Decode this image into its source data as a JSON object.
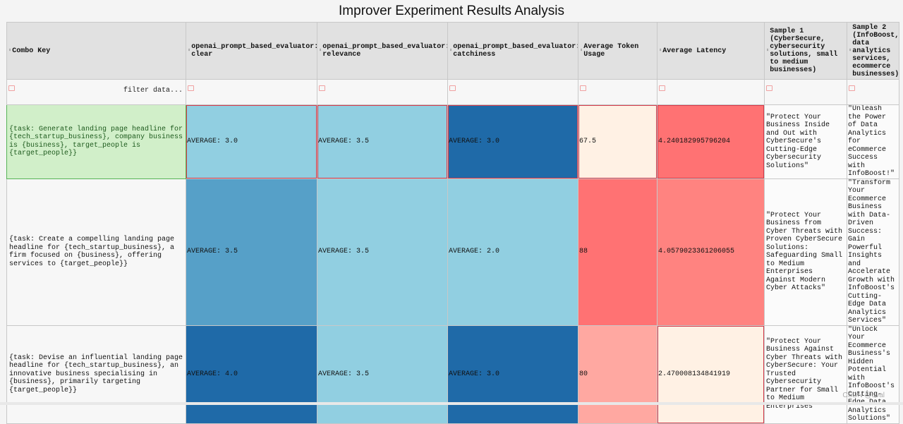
{
  "title": "Improver Experiment Results Analysis",
  "filter_placeholder": "filter data...",
  "columns": [
    "Combo Key",
    "openai_prompt_based_evaluator: clear",
    "openai_prompt_based_evaluator: relevance",
    "openai_prompt_based_evaluator: catchiness",
    "Average Token Usage",
    "Average Latency",
    "Sample 1 (CyberSecure, cybersecurity solutions, small to medium businesses)",
    "Sample 2 (InfoBoost, data analytics services, ecommerce businesses)"
  ],
  "rows": [
    {
      "combo_key": "{task: Generate landing page headline for {tech_startup_business}, company business is {business}, target_people is {target_people}}",
      "clear": "AVERAGE: 3.0",
      "relevance": "AVERAGE: 3.5",
      "catchiness": "AVERAGE: 3.0",
      "tokens": "67.5",
      "latency": "4.240182995796204",
      "sample1": "\"Protect Your Business Inside and Out with CyberSecure's Cutting-Edge Cybersecurity Solutions\"",
      "sample2": "\"Unleash the Power of Data Analytics for eCommerce Success with InfoBoost!\""
    },
    {
      "combo_key": "{task: Create a compelling landing page headline for {tech_startup_business}, a firm focused on {business}, offering services to {target_people}}",
      "clear": "AVERAGE: 3.5",
      "relevance": "AVERAGE: 3.5",
      "catchiness": "AVERAGE: 2.0",
      "tokens": "88",
      "latency": "4.0579023361206055",
      "sample1": "\"Protect Your Business from Cyber Threats with Proven CyberSecure Solutions: Safeguarding Small to Medium Enterprises Against Modern Cyber Attacks\"",
      "sample2": "\"Transform Your Ecommerce Business with Data-Driven Success: Gain Powerful Insights and Accelerate Growth with InfoBoost's Cutting-Edge Data Analytics Services\""
    },
    {
      "combo_key": "{task: Devise an influential landing page headline for {tech_startup_business}, an innovative business specialising in {business}, primarily targeting {target_people}}",
      "clear": "AVERAGE: 4.0",
      "relevance": "AVERAGE: 3.5",
      "catchiness": "AVERAGE: 3.0",
      "tokens": "80",
      "latency": "2.470008134841919",
      "sample1": "\"Protect Your Business Against Cyber Threats with CyberSecure: Your Trusted Cybersecurity Partner for Small to Medium Enterprises\"",
      "sample2": "\"Unlock Your Ecommerce Business's Hidden Potential with InfoBoost's Cutting-Edge Data Analytics Solutions\""
    }
  ],
  "colors": {
    "blue_light": "#91cfe1",
    "blue_mid": "#56a0c8",
    "blue_dark": "#1f6aa8",
    "red_strong": "#ff7273",
    "red_mid": "#ff8380",
    "red_light": "#ffa8a1",
    "cream": "#fff1e4",
    "selected_green": "#d1efc9"
  },
  "watermark": "CSDN @uval"
}
